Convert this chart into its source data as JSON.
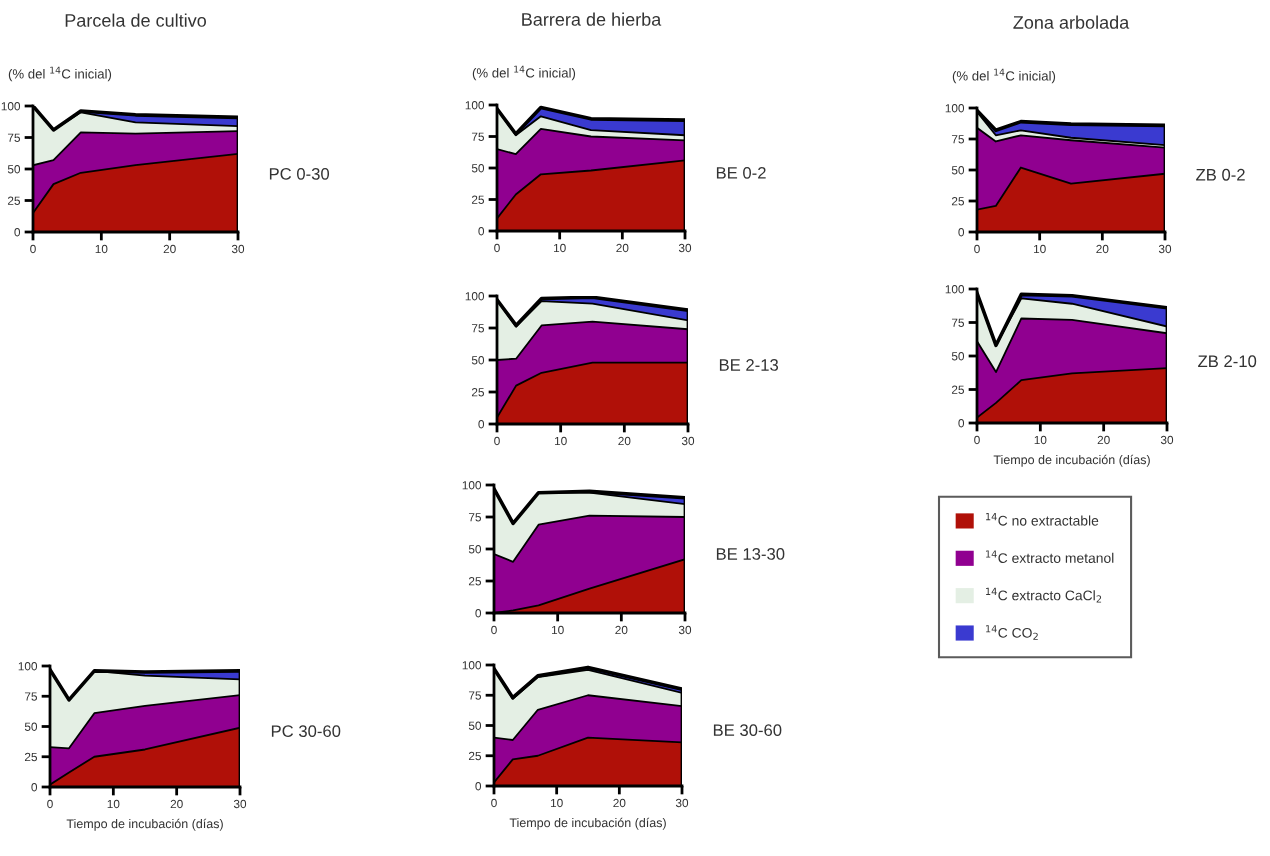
{
  "chart_data": [
    {
      "type": "area",
      "stacked": true,
      "title": "Parcela de cultivo",
      "ylabel": "(% del $^{14}$C inicial)",
      "annotations": [
        "PC 0-30"
      ],
      "x": [
        0,
        3,
        7,
        15,
        30
      ],
      "xlim": [
        0,
        30
      ],
      "xticks": [
        0,
        10,
        20,
        30
      ],
      "ylim": [
        0,
        100
      ],
      "yticks": [
        0,
        25,
        50,
        75,
        100
      ],
      "grid": false,
      "series": [
        {
          "color": "#b01008",
          "values": [
            15,
            38,
            47,
            53,
            62
          ]
        },
        {
          "color": "#900090",
          "values": [
            38,
            19,
            32,
            25,
            18
          ]
        },
        {
          "color": "#e4efe4",
          "values": [
            47,
            24,
            16,
            9,
            4
          ]
        },
        {
          "color": "#3a3ad0",
          "values": [
            0,
            0,
            1,
            6,
            7
          ]
        }
      ]
    },
    {
      "type": "area",
      "stacked": true,
      "title": "Barrera de hierba",
      "ylabel": "(% del $^{14}$C inicial)",
      "annotations": [
        "BE 0-2"
      ],
      "x": [
        0,
        3,
        7,
        15,
        30
      ],
      "xlim": [
        0,
        30
      ],
      "xticks": [
        0,
        10,
        20,
        30
      ],
      "ylim": [
        0,
        100
      ],
      "yticks": [
        0,
        25,
        50,
        75,
        100
      ],
      "grid": false,
      "series": [
        {
          "color": "#b01008",
          "values": [
            10,
            29,
            45,
            48,
            56
          ]
        },
        {
          "color": "#900090",
          "values": [
            55,
            32,
            36,
            27,
            16
          ]
        },
        {
          "color": "#e4efe4",
          "values": [
            32,
            15,
            10,
            5,
            4
          ]
        },
        {
          "color": "#3a3ad0",
          "values": [
            0,
            1,
            7,
            9,
            12
          ]
        }
      ]
    },
    {
      "type": "area",
      "stacked": true,
      "title": "Zona arbolada",
      "ylabel": "(% del $^{14}$C inicial)",
      "annotations": [
        "ZB 0-2"
      ],
      "x": [
        0,
        3,
        7,
        15,
        30
      ],
      "xlim": [
        0,
        30
      ],
      "xticks": [
        0,
        10,
        20,
        30
      ],
      "ylim": [
        0,
        100
      ],
      "yticks": [
        0,
        25,
        50,
        75,
        100
      ],
      "grid": false,
      "series": [
        {
          "color": "#b01008",
          "values": [
            18,
            21,
            52,
            39,
            47
          ]
        },
        {
          "color": "#900090",
          "values": [
            66,
            52,
            26,
            35,
            21
          ]
        },
        {
          "color": "#e4efe4",
          "values": [
            13,
            5,
            4,
            2,
            2
          ]
        },
        {
          "color": "#3a3ad0",
          "values": [
            1,
            4,
            7,
            11,
            16
          ]
        }
      ]
    },
    {
      "type": "area",
      "stacked": true,
      "annotations": [
        "BE 2-13"
      ],
      "x": [
        0,
        3,
        7,
        15,
        30
      ],
      "xlim": [
        0,
        30
      ],
      "xticks": [
        0,
        10,
        20,
        30
      ],
      "ylim": [
        0,
        100
      ],
      "yticks": [
        0,
        25,
        50,
        75,
        100
      ],
      "grid": false,
      "series": [
        {
          "color": "#b01008",
          "values": [
            5,
            30,
            40,
            48,
            48
          ]
        },
        {
          "color": "#900090",
          "values": [
            45,
            21,
            37,
            32,
            26
          ]
        },
        {
          "color": "#e4efe4",
          "values": [
            47,
            25,
            19,
            14,
            7
          ]
        },
        {
          "color": "#3a3ad0",
          "values": [
            0,
            1,
            2,
            5,
            8
          ]
        }
      ]
    },
    {
      "type": "area",
      "stacked": true,
      "xlabel": "Tiempo de incubación (días)",
      "annotations": [
        "ZB 2-10"
      ],
      "x": [
        0,
        3,
        7,
        15,
        30
      ],
      "xlim": [
        0,
        30
      ],
      "xticks": [
        0,
        10,
        20,
        30
      ],
      "ylim": [
        0,
        100
      ],
      "yticks": [
        0,
        25,
        50,
        75,
        100
      ],
      "grid": false,
      "legend": "bottom",
      "series": [
        {
          "name": "$^{14}$C no extractable",
          "color": "#b01008",
          "values": [
            4,
            15,
            32,
            37,
            41
          ]
        },
        {
          "name": "$^{14}$C extracto metanol",
          "color": "#900090",
          "values": [
            57,
            23,
            46,
            40,
            26
          ]
        },
        {
          "name": "$^{14}$C extracto CaCl$_{2}$",
          "color": "#e4efe4",
          "values": [
            36,
            20,
            15,
            12,
            5
          ]
        },
        {
          "name": "$^{14}$C CO$_{2}$",
          "color": "#3a3ad0",
          "values": [
            0,
            0,
            3,
            6,
            14
          ]
        }
      ]
    },
    {
      "type": "area",
      "stacked": true,
      "annotations": [
        "BE 13-30"
      ],
      "x": [
        0,
        3,
        7,
        15,
        30
      ],
      "xlim": [
        0,
        30
      ],
      "xticks": [
        0,
        10,
        20,
        30
      ],
      "ylim": [
        0,
        100
      ],
      "yticks": [
        0,
        25,
        50,
        75,
        100
      ],
      "grid": false,
      "series": [
        {
          "color": "#b01008",
          "values": [
            0,
            2,
            6,
            19,
            42
          ]
        },
        {
          "color": "#900090",
          "values": [
            46,
            38,
            63,
            57,
            33
          ]
        },
        {
          "color": "#e4efe4",
          "values": [
            51,
            30,
            25,
            18,
            10
          ]
        },
        {
          "color": "#3a3ad0",
          "values": [
            0,
            0,
            0,
            1,
            5
          ]
        }
      ]
    },
    {
      "type": "area",
      "stacked": true,
      "xlabel": "Tiempo de incubación (días)",
      "annotations": [
        "PC 30-60"
      ],
      "x": [
        0,
        3,
        7,
        15,
        30
      ],
      "xlim": [
        0,
        30
      ],
      "xticks": [
        0,
        10,
        20,
        30
      ],
      "ylim": [
        0,
        100
      ],
      "yticks": [
        0,
        25,
        50,
        75,
        100
      ],
      "grid": false,
      "series": [
        {
          "color": "#b01008",
          "values": [
            2,
            12,
            25,
            31,
            49
          ]
        },
        {
          "color": "#900090",
          "values": [
            31,
            20,
            36,
            36,
            27
          ]
        },
        {
          "color": "#e4efe4",
          "values": [
            64,
            40,
            35,
            25,
            13
          ]
        },
        {
          "color": "#3a3ad0",
          "values": [
            0,
            0,
            0,
            3,
            7
          ]
        }
      ]
    },
    {
      "type": "area",
      "stacked": true,
      "xlabel": "Tiempo de incubación (días)",
      "annotations": [
        "BE 30-60"
      ],
      "x": [
        0,
        3,
        7,
        15,
        30
      ],
      "xlim": [
        0,
        30
      ],
      "xticks": [
        0,
        10,
        20,
        30
      ],
      "ylim": [
        0,
        100
      ],
      "yticks": [
        0,
        25,
        50,
        75,
        100
      ],
      "grid": false,
      "series": [
        {
          "color": "#b01008",
          "values": [
            3,
            22,
            25,
            40,
            36
          ]
        },
        {
          "color": "#900090",
          "values": [
            37,
            16,
            38,
            35,
            30
          ]
        },
        {
          "color": "#e4efe4",
          "values": [
            57,
            34,
            27,
            21,
            11
          ]
        },
        {
          "color": "#3a3ad0",
          "values": [
            0,
            1,
            1,
            2,
            3
          ]
        }
      ]
    }
  ]
}
